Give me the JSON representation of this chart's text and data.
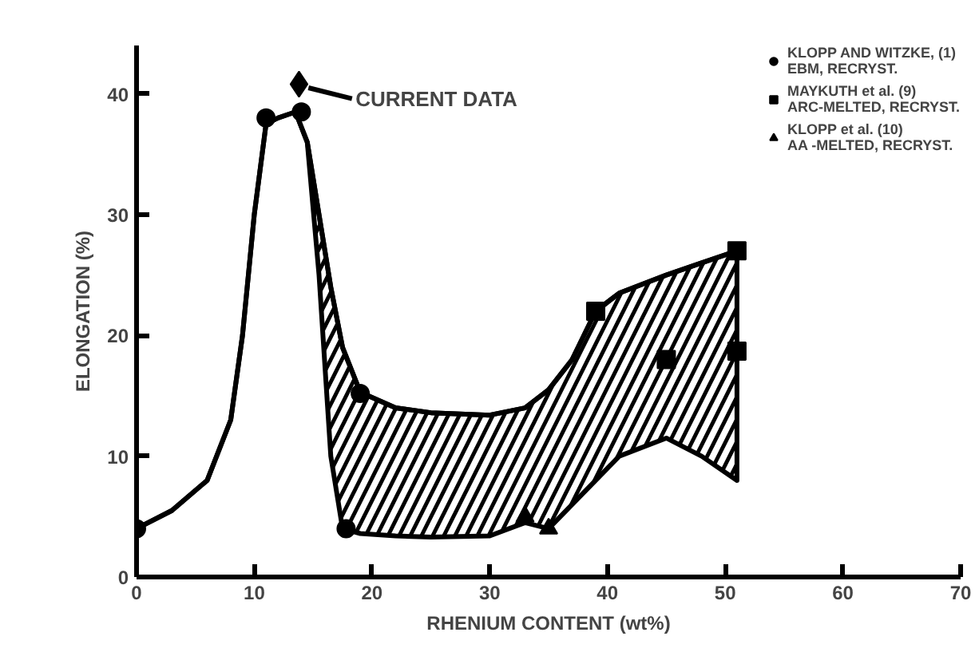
{
  "chart_data": {
    "type": "line",
    "xlabel": "RHENIUM CONTENT (wt%)",
    "ylabel": "ELONGATION (%)",
    "xlim": [
      0,
      70
    ],
    "ylim": [
      0,
      44
    ],
    "xticks": [
      0,
      10,
      20,
      30,
      40,
      50,
      60,
      70
    ],
    "yticks": [
      0,
      10,
      20,
      30,
      40
    ],
    "grid": false,
    "legend": "top right",
    "series": [
      {
        "color": "#000000",
        "x": [
          0,
          3,
          6,
          8,
          9,
          10,
          11,
          12,
          13.5,
          14.5,
          15.5,
          16.5,
          17.5,
          19,
          22,
          25,
          30,
          33,
          35,
          37,
          39,
          41,
          45,
          48,
          51
        ],
        "values": [
          4,
          5.5,
          8,
          13,
          20,
          30,
          37.5,
          38,
          38.5,
          36,
          30,
          24,
          19,
          15.3,
          14,
          13.6,
          13.4,
          14,
          15.5,
          18,
          22,
          23.5,
          25,
          26,
          27
        ],
        "lower": [
          4,
          5.5,
          8,
          13,
          20,
          30,
          37.5,
          38,
          38.5,
          36,
          25,
          10,
          4,
          3.6,
          3.4,
          3.3,
          3.4,
          4.5,
          4,
          6,
          8,
          10,
          11.5,
          10,
          8
        ],
        "upper": [
          4,
          5.5,
          8,
          13,
          20,
          30,
          37.5,
          38,
          38.5,
          36,
          30,
          24,
          19,
          15.3,
          14,
          13.6,
          13.4,
          14,
          15.5,
          18,
          22,
          23.5,
          25,
          26,
          27
        ]
      },
      {
        "type": "scatter",
        "name": "KLOPP AND WITZKE, (1)\nEBM, RECRYST.",
        "color": "#000000",
        "marker": "circle",
        "x": [
          0,
          11,
          14,
          17.8,
          19
        ],
        "values": [
          4,
          38,
          38.5,
          4,
          15.2
        ]
      },
      {
        "type": "scatter",
        "name": "MAYKUTH et al. (9)\nARC-MELTED, RECRYST.",
        "color": "#000000",
        "marker": "square",
        "x": [
          39,
          45,
          51,
          51
        ],
        "values": [
          22,
          18,
          18.7,
          27
        ]
      },
      {
        "type": "scatter",
        "name": "KLOPP et al. (10)\nAA -MELTED, RECRYST.",
        "color": "#000000",
        "marker": "triangle",
        "x": [
          33,
          35
        ],
        "values": [
          5,
          4
        ]
      },
      {
        "type": "scatter",
        "color": "#000000",
        "marker": "diamond",
        "x": [
          13.8
        ],
        "values": [
          40.8
        ]
      }
    ],
    "annotations": [
      {
        "text": "CURRENT DATA",
        "x": 13.8,
        "y": 40.8
      }
    ]
  }
}
